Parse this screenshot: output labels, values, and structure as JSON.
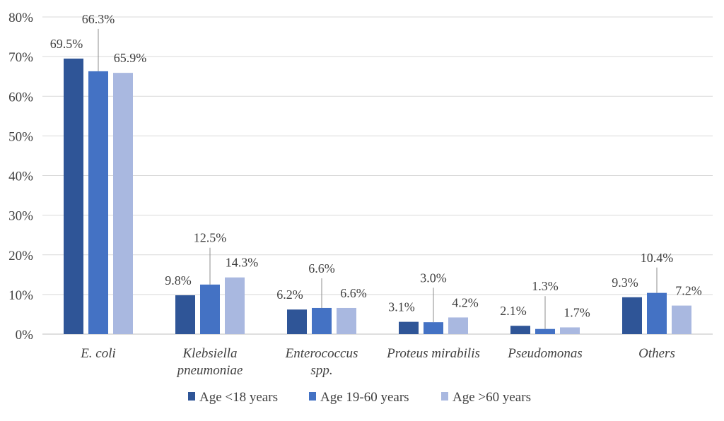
{
  "chart_data": {
    "type": "bar",
    "title": "",
    "xlabel": "",
    "ylabel": "",
    "ylim": [
      0,
      80
    ],
    "y_ticks": [
      "0%",
      "10%",
      "20%",
      "30%",
      "40%",
      "50%",
      "60%",
      "70%",
      "80%"
    ],
    "y_tick_values": [
      0,
      10,
      20,
      30,
      40,
      50,
      60,
      70,
      80
    ],
    "grid": true,
    "legend_position": "bottom",
    "categories": [
      [
        "E. coli"
      ],
      [
        "Klebsiella",
        "pneumoniae"
      ],
      [
        "Enterococcus",
        "spp."
      ],
      [
        "Proteus mirabilis"
      ],
      [
        "Pseudomonas"
      ],
      [
        "Others"
      ]
    ],
    "series": [
      {
        "name": "Age <18 years",
        "color": "#2f5597",
        "values": [
          69.5,
          9.8,
          6.2,
          3.1,
          2.1,
          9.3
        ],
        "labels": [
          "69.5%",
          "9.8%",
          "6.2%",
          "3.1%",
          "2.1%",
          "9.3%"
        ]
      },
      {
        "name": "Age 19-60 years",
        "color": "#4472c4",
        "values": [
          66.3,
          12.5,
          6.6,
          3.0,
          1.3,
          10.4
        ],
        "labels": [
          "66.3%",
          "12.5%",
          "6.6%",
          "3.0%",
          "1.3%",
          "10.4%"
        ]
      },
      {
        "name": "Age >60 years",
        "color": "#a9b8e0",
        "values": [
          65.9,
          14.3,
          6.6,
          4.2,
          1.7,
          7.2
        ],
        "labels": [
          "65.9%",
          "14.3%",
          "6.6%",
          "4.2%",
          "1.7%",
          "7.2%"
        ]
      }
    ]
  }
}
